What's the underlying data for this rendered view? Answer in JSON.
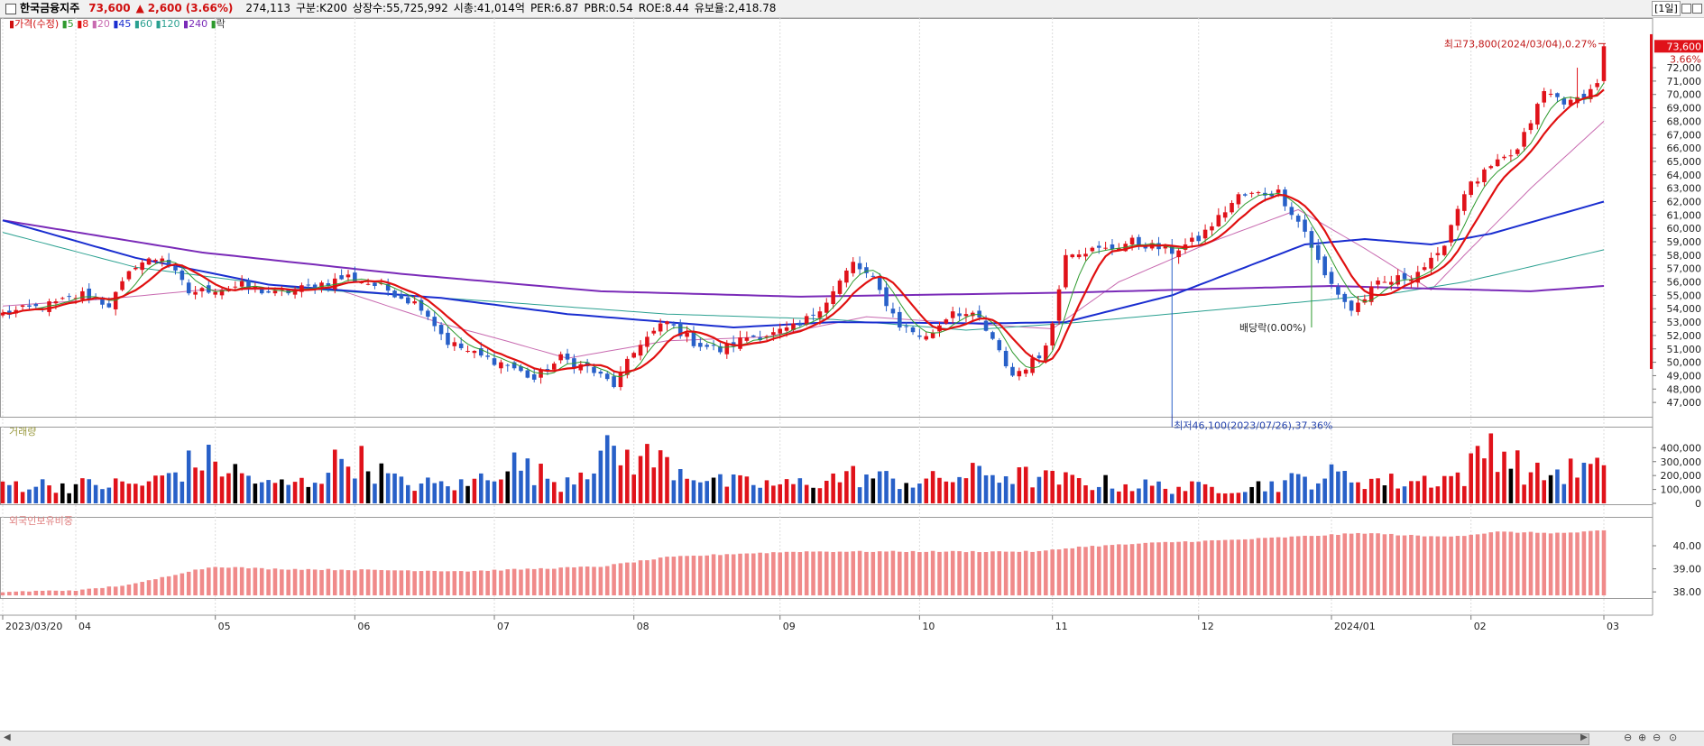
{
  "header": {
    "stock_name": "한국금융지주",
    "price": "73,600",
    "change_arrow": "▲",
    "change": "2,600",
    "change_pct": "(3.66%)",
    "volume": "274,113",
    "segment": "구분:K200",
    "shares": "상장수:55,725,992",
    "market_cap": "시총:41,014억",
    "per": "PER:6.87",
    "pbr": "PBR:0.54",
    "roe": "ROE:8.44",
    "float": "유보율:2,418.78",
    "period": "[1일]"
  },
  "colors": {
    "up": "#e0121a",
    "down": "#2860c8",
    "ma5": "#2e9a2e",
    "ma8": "#e01010",
    "ma20": "#c86ab0",
    "ma45": "#1a2ed0",
    "ma60": "#2aa090",
    "ma240": "#7a2ab8",
    "foreign": "#f08a8a"
  },
  "chart_data": [
    {
      "type": "candlestick",
      "legend": {
        "price_label": "가격(수정)",
        "ma_labels": [
          "5",
          "8",
          "20",
          "45",
          "60",
          "120",
          "240"
        ],
        "extra_label": "락"
      },
      "x_tick_labels": [
        "2023/03/20",
        "04",
        "05",
        "06",
        "07",
        "08",
        "09",
        "10",
        "11",
        "12",
        "2024/01",
        "02",
        "03"
      ],
      "x_tick_index": [
        0,
        11,
        32,
        53,
        74,
        95,
        117,
        138,
        158,
        180,
        200,
        221,
        241
      ],
      "ylim": [
        46200,
        74900
      ],
      "y_ticks": [
        47000,
        48000,
        49000,
        50000,
        51000,
        52000,
        53000,
        54000,
        55000,
        56000,
        57000,
        58000,
        59000,
        60000,
        61000,
        62000,
        63000,
        64000,
        65000,
        66000,
        67000,
        68000,
        69000,
        70000,
        71000,
        72000
      ],
      "last_price_label": "73,600",
      "last_pct_label": "3.66%",
      "annotations": {
        "high_label": "최고73,800(2024/03/04),0.27%",
        "low_label": "최저46,100(2023/07/26),37.36%",
        "dividend_label": "배당락(0.00%)"
      },
      "anchors": {
        "close": [
          [
            0,
            53600
          ],
          [
            8,
            54400
          ],
          [
            12,
            55100
          ],
          [
            16,
            54300
          ],
          [
            20,
            57300
          ],
          [
            24,
            57900
          ],
          [
            28,
            55200
          ],
          [
            32,
            55500
          ],
          [
            36,
            55700
          ],
          [
            41,
            55100
          ],
          [
            46,
            55600
          ],
          [
            52,
            56400
          ],
          [
            58,
            55400
          ],
          [
            63,
            54200
          ],
          [
            67,
            51500
          ],
          [
            71,
            50600
          ],
          [
            76,
            49800
          ],
          [
            80,
            48700
          ],
          [
            84,
            50300
          ],
          [
            88,
            49600
          ],
          [
            92,
            48300
          ],
          [
            96,
            51500
          ],
          [
            100,
            53000
          ],
          [
            104,
            51500
          ],
          [
            108,
            50900
          ],
          [
            112,
            51900
          ],
          [
            116,
            52100
          ],
          [
            120,
            52700
          ],
          [
            124,
            54600
          ],
          [
            128,
            57400
          ],
          [
            131,
            56100
          ],
          [
            135,
            52800
          ],
          [
            139,
            51800
          ],
          [
            143,
            53900
          ],
          [
            147,
            53200
          ],
          [
            152,
            49000
          ],
          [
            156,
            50400
          ],
          [
            158,
            52800
          ],
          [
            160,
            58300
          ],
          [
            166,
            58400
          ],
          [
            170,
            59000
          ],
          [
            176,
            58300
          ],
          [
            180,
            59200
          ],
          [
            186,
            62400
          ],
          [
            192,
            62700
          ],
          [
            196,
            59800
          ],
          [
            199,
            56400
          ],
          [
            203,
            53900
          ],
          [
            207,
            55800
          ],
          [
            212,
            56500
          ],
          [
            216,
            57800
          ],
          [
            220,
            62800
          ],
          [
            224,
            64500
          ],
          [
            228,
            65800
          ],
          [
            232,
            70200
          ],
          [
            236,
            69300
          ],
          [
            239,
            70300
          ],
          [
            240,
            71000
          ],
          [
            241,
            73600
          ]
        ],
        "ma20": [
          [
            0,
            54200
          ],
          [
            15,
            54700
          ],
          [
            30,
            55400
          ],
          [
            50,
            55500
          ],
          [
            66,
            52900
          ],
          [
            75,
            51700
          ],
          [
            85,
            50300
          ],
          [
            100,
            51600
          ],
          [
            115,
            51900
          ],
          [
            130,
            53400
          ],
          [
            145,
            52900
          ],
          [
            158,
            52500
          ],
          [
            168,
            56000
          ],
          [
            182,
            59000
          ],
          [
            195,
            61400
          ],
          [
            205,
            58500
          ],
          [
            215,
            55400
          ],
          [
            220,
            58000
          ],
          [
            230,
            63000
          ],
          [
            241,
            68000
          ]
        ],
        "ma45": [
          [
            0,
            60600
          ],
          [
            20,
            57800
          ],
          [
            40,
            55800
          ],
          [
            66,
            54800
          ],
          [
            85,
            53600
          ],
          [
            110,
            52600
          ],
          [
            125,
            53000
          ],
          [
            148,
            52900
          ],
          [
            160,
            53000
          ],
          [
            176,
            55000
          ],
          [
            196,
            58800
          ],
          [
            205,
            59200
          ],
          [
            215,
            58800
          ],
          [
            224,
            59600
          ],
          [
            241,
            62000
          ]
        ],
        "ma60": [
          [
            0,
            59700
          ],
          [
            20,
            57100
          ],
          [
            45,
            55500
          ],
          [
            75,
            54500
          ],
          [
            100,
            53600
          ],
          [
            125,
            53200
          ],
          [
            145,
            52400
          ],
          [
            160,
            52900
          ],
          [
            180,
            53800
          ],
          [
            200,
            54700
          ],
          [
            210,
            55200
          ],
          [
            220,
            56000
          ],
          [
            241,
            58400
          ]
        ],
        "ma240": [
          [
            0,
            60600
          ],
          [
            30,
            58200
          ],
          [
            60,
            56600
          ],
          [
            90,
            55300
          ],
          [
            120,
            54900
          ],
          [
            160,
            55200
          ],
          [
            200,
            55700
          ],
          [
            230,
            55300
          ],
          [
            241,
            55700
          ]
        ],
        "volume": [
          [
            0,
            140000
          ],
          [
            10,
            130000
          ],
          [
            22,
            140000
          ],
          [
            30,
            320000
          ],
          [
            40,
            130000
          ],
          [
            46,
            150000
          ],
          [
            52,
            350000
          ],
          [
            60,
            140000
          ],
          [
            70,
            130000
          ],
          [
            76,
            300000
          ],
          [
            84,
            150000
          ],
          [
            90,
            350000
          ],
          [
            98,
            320000
          ],
          [
            108,
            150000
          ],
          [
            118,
            130000
          ],
          [
            128,
            200000
          ],
          [
            138,
            150000
          ],
          [
            148,
            220000
          ],
          [
            158,
            170000
          ],
          [
            170,
            130000
          ],
          [
            180,
            110000
          ],
          [
            190,
            130000
          ],
          [
            200,
            200000
          ],
          [
            210,
            150000
          ],
          [
            220,
            200000
          ],
          [
            224,
            450000
          ],
          [
            230,
            200000
          ],
          [
            241,
            260000
          ]
        ],
        "foreign": [
          [
            0,
            38.0
          ],
          [
            12,
            38.08
          ],
          [
            20,
            38.35
          ],
          [
            28,
            38.9
          ],
          [
            32,
            39.1
          ],
          [
            40,
            39.0
          ],
          [
            55,
            38.95
          ],
          [
            70,
            38.9
          ],
          [
            90,
            39.1
          ],
          [
            100,
            39.5
          ],
          [
            110,
            39.65
          ],
          [
            120,
            39.75
          ],
          [
            140,
            39.75
          ],
          [
            156,
            39.75
          ],
          [
            162,
            39.95
          ],
          [
            175,
            40.15
          ],
          [
            185,
            40.25
          ],
          [
            195,
            40.4
          ],
          [
            205,
            40.55
          ],
          [
            215,
            40.4
          ],
          [
            220,
            40.45
          ],
          [
            225,
            40.6
          ],
          [
            235,
            40.55
          ],
          [
            241,
            40.65
          ]
        ]
      }
    },
    {
      "type": "bar",
      "title": "거래량",
      "ylim": [
        0,
        480000
      ],
      "y_ticks": [
        0,
        100000,
        200000,
        300000,
        400000
      ],
      "y_tick_labels": [
        "0",
        "100,000",
        "200,000",
        "300,000",
        "400,000"
      ]
    },
    {
      "type": "bar",
      "title": "외국인보유비중",
      "ylim": [
        37.85,
        40.9
      ],
      "y_ticks": [
        38.0,
        39.0,
        40.0
      ],
      "y_tick_labels": [
        "38.00",
        "39.00",
        "40.00"
      ]
    }
  ]
}
